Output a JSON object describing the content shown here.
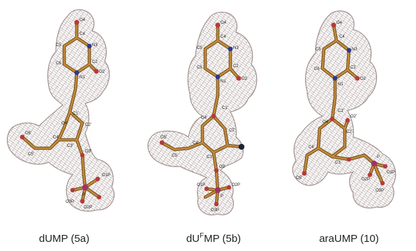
{
  "colors": {
    "mesh": "#a89896",
    "mesh_edge": "#9b8887",
    "bond": "#b07a2e",
    "bond_dark": "#6e4a18",
    "carbon": "#8a5a22",
    "nitrogen": "#2b3a8c",
    "oxygen": "#b63a3a",
    "phosphorus": "#a2306a",
    "fluorine": "#1c2430"
  },
  "panels": [
    {
      "caption": {
        "main": "dUMP (5a)"
      },
      "atom_labels": [
        "O4",
        "C4",
        "C5",
        "N3",
        "C2",
        "C6",
        "O2",
        "N1",
        "C1'",
        "O4'",
        "O3'",
        "C4'",
        "C3'",
        "C2'",
        "C5'",
        "O5'",
        "P",
        "O1P",
        "O2P",
        "O3P"
      ]
    },
    {
      "caption": {
        "pre": "dU",
        "sup": "F",
        "post": "MP (5b)"
      },
      "atom_labels": [
        "O4",
        "C4",
        "C5",
        "N3",
        "C2",
        "C6",
        "O2",
        "N1",
        "C1'",
        "O4'",
        "C2'",
        "C4'",
        "C3'",
        "C5'",
        "O5'",
        "O3'",
        "O1P",
        "P",
        "O2P",
        "O3P"
      ]
    },
    {
      "caption": {
        "main": "araUMP (10)"
      },
      "atom_labels": [
        "O4",
        "C4",
        "N3",
        "C5",
        "C2",
        "C6",
        "O2",
        "N1",
        "C1'",
        "O4'",
        "C2'",
        "O2'",
        "C4'",
        "C3'",
        "O5'",
        "P",
        "O1P",
        "O2P",
        "O3P"
      ]
    }
  ]
}
